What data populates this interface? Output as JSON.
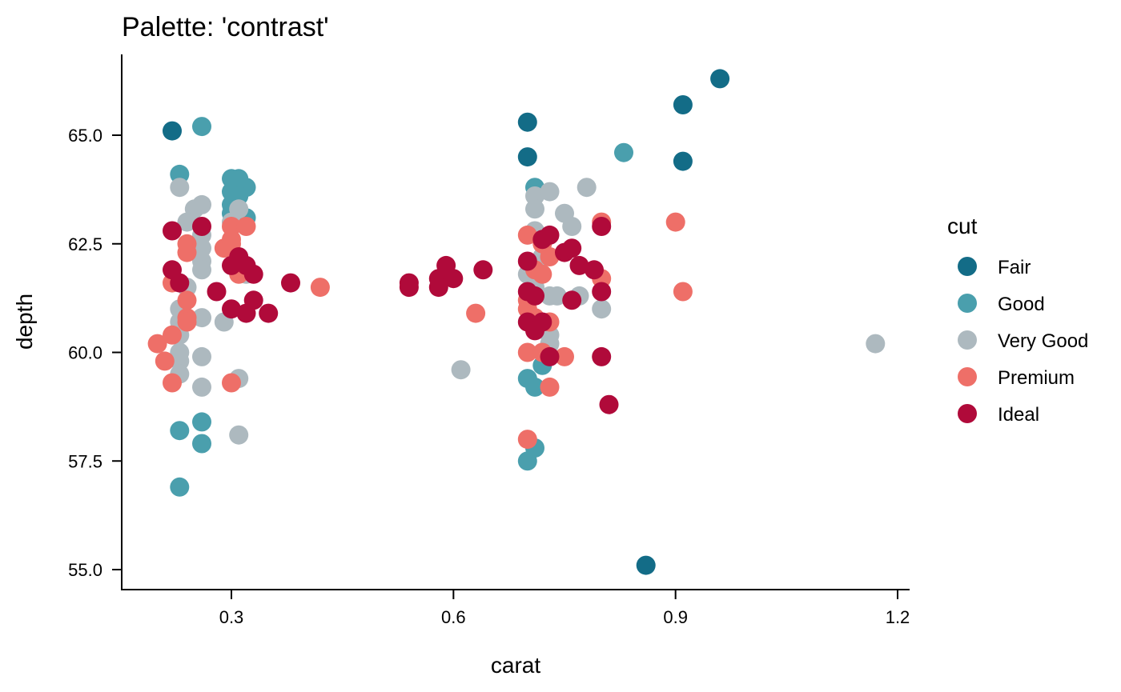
{
  "chart_data": {
    "type": "scatter",
    "title": "Palette: 'contrast'",
    "xlabel": "carat",
    "ylabel": "depth",
    "xlim": [
      0.15,
      1.22
    ],
    "ylim": [
      54.6,
      66.9
    ],
    "x_ticks": [
      0.3,
      0.6,
      0.9,
      1.2
    ],
    "x_tick_labels": [
      "0.3",
      "0.6",
      "0.9",
      "1.2"
    ],
    "y_ticks": [
      55.0,
      57.5,
      60.0,
      62.5,
      65.0
    ],
    "y_tick_labels": [
      "55.0",
      "57.5",
      "60.0",
      "62.5",
      "65.0"
    ],
    "grid": false,
    "legend": {
      "title": "cut",
      "placement": "right"
    },
    "series": [
      {
        "name": "Fair",
        "color": "#136c87",
        "points": [
          [
            0.22,
            65.1
          ],
          [
            0.7,
            65.3
          ],
          [
            0.7,
            64.5
          ],
          [
            0.91,
            65.7
          ],
          [
            0.91,
            64.4
          ],
          [
            0.96,
            66.3
          ],
          [
            0.86,
            55.1
          ]
        ]
      },
      {
        "name": "Good",
        "color": "#4a9fad",
        "points": [
          [
            0.26,
            65.2
          ],
          [
            0.23,
            64.1
          ],
          [
            0.3,
            64.0
          ],
          [
            0.31,
            64.0
          ],
          [
            0.3,
            63.7
          ],
          [
            0.32,
            63.8
          ],
          [
            0.3,
            63.4
          ],
          [
            0.31,
            63.6
          ],
          [
            0.3,
            63.2
          ],
          [
            0.32,
            63.1
          ],
          [
            0.23,
            58.2
          ],
          [
            0.26,
            58.4
          ],
          [
            0.26,
            57.9
          ],
          [
            0.23,
            56.9
          ],
          [
            0.71,
            63.8
          ],
          [
            0.83,
            64.6
          ],
          [
            0.7,
            59.4
          ],
          [
            0.72,
            59.7
          ],
          [
            0.71,
            59.2
          ],
          [
            0.7,
            57.5
          ],
          [
            0.71,
            57.8
          ]
        ]
      },
      {
        "name": "Very Good",
        "color": "#adb9bf",
        "points": [
          [
            0.23,
            63.8
          ],
          [
            0.26,
            63.4
          ],
          [
            0.25,
            63.3
          ],
          [
            0.24,
            63.0
          ],
          [
            0.26,
            62.7
          ],
          [
            0.26,
            62.4
          ],
          [
            0.26,
            62.1
          ],
          [
            0.26,
            61.9
          ],
          [
            0.24,
            61.5
          ],
          [
            0.23,
            61.0
          ],
          [
            0.23,
            60.7
          ],
          [
            0.23,
            60.4
          ],
          [
            0.23,
            60.0
          ],
          [
            0.23,
            59.8
          ],
          [
            0.23,
            59.5
          ],
          [
            0.26,
            60.8
          ],
          [
            0.26,
            59.9
          ],
          [
            0.26,
            59.2
          ],
          [
            0.29,
            60.7
          ],
          [
            0.31,
            59.4
          ],
          [
            0.31,
            58.1
          ],
          [
            0.31,
            63.3
          ],
          [
            0.3,
            63.0
          ],
          [
            0.32,
            61.8
          ],
          [
            0.71,
            63.6
          ],
          [
            0.71,
            63.3
          ],
          [
            0.73,
            63.7
          ],
          [
            0.78,
            63.8
          ],
          [
            0.75,
            63.2
          ],
          [
            0.76,
            62.9
          ],
          [
            0.71,
            62.8
          ],
          [
            0.72,
            62.2
          ],
          [
            0.7,
            61.8
          ],
          [
            0.71,
            61.5
          ],
          [
            0.73,
            61.3
          ],
          [
            0.74,
            61.3
          ],
          [
            0.77,
            61.3
          ],
          [
            0.73,
            60.4
          ],
          [
            0.73,
            60.2
          ],
          [
            0.8,
            61.0
          ],
          [
            0.61,
            59.6
          ],
          [
            1.17,
            60.2
          ]
        ]
      },
      {
        "name": "Premium",
        "color": "#ee6f68",
        "points": [
          [
            0.24,
            62.5
          ],
          [
            0.24,
            62.3
          ],
          [
            0.22,
            61.6
          ],
          [
            0.24,
            61.2
          ],
          [
            0.24,
            60.8
          ],
          [
            0.24,
            60.7
          ],
          [
            0.22,
            60.4
          ],
          [
            0.2,
            60.2
          ],
          [
            0.21,
            59.8
          ],
          [
            0.22,
            59.3
          ],
          [
            0.3,
            62.9
          ],
          [
            0.32,
            62.9
          ],
          [
            0.3,
            62.6
          ],
          [
            0.29,
            62.4
          ],
          [
            0.3,
            62.5
          ],
          [
            0.31,
            61.8
          ],
          [
            0.3,
            59.3
          ],
          [
            0.42,
            61.5
          ],
          [
            0.63,
            60.9
          ],
          [
            0.7,
            62.7
          ],
          [
            0.72,
            62.5
          ],
          [
            0.73,
            62.2
          ],
          [
            0.71,
            61.9
          ],
          [
            0.72,
            61.8
          ],
          [
            0.7,
            61.2
          ],
          [
            0.7,
            61.0
          ],
          [
            0.71,
            60.8
          ],
          [
            0.73,
            60.7
          ],
          [
            0.7,
            60.0
          ],
          [
            0.72,
            60.0
          ],
          [
            0.75,
            59.9
          ],
          [
            0.73,
            59.2
          ],
          [
            0.7,
            58.0
          ],
          [
            0.8,
            63.0
          ],
          [
            0.8,
            61.7
          ],
          [
            0.9,
            63.0
          ],
          [
            0.91,
            61.4
          ]
        ]
      },
      {
        "name": "Ideal",
        "color": "#b00a3a",
        "points": [
          [
            0.22,
            62.8
          ],
          [
            0.26,
            62.9
          ],
          [
            0.22,
            61.9
          ],
          [
            0.23,
            61.6
          ],
          [
            0.28,
            61.4
          ],
          [
            0.3,
            62.0
          ],
          [
            0.31,
            62.2
          ],
          [
            0.32,
            62.0
          ],
          [
            0.33,
            61.8
          ],
          [
            0.3,
            61.0
          ],
          [
            0.32,
            60.9
          ],
          [
            0.33,
            61.2
          ],
          [
            0.35,
            60.9
          ],
          [
            0.38,
            61.6
          ],
          [
            0.54,
            61.6
          ],
          [
            0.54,
            61.5
          ],
          [
            0.59,
            62.0
          ],
          [
            0.58,
            61.7
          ],
          [
            0.6,
            61.7
          ],
          [
            0.58,
            61.5
          ],
          [
            0.64,
            61.9
          ],
          [
            0.7,
            62.1
          ],
          [
            0.72,
            62.6
          ],
          [
            0.73,
            62.7
          ],
          [
            0.75,
            62.3
          ],
          [
            0.76,
            62.4
          ],
          [
            0.77,
            62.0
          ],
          [
            0.79,
            61.9
          ],
          [
            0.7,
            61.4
          ],
          [
            0.71,
            61.3
          ],
          [
            0.76,
            61.2
          ],
          [
            0.7,
            60.7
          ],
          [
            0.71,
            60.5
          ],
          [
            0.72,
            60.7
          ],
          [
            0.73,
            59.9
          ],
          [
            0.8,
            62.9
          ],
          [
            0.8,
            61.4
          ],
          [
            0.8,
            59.9
          ],
          [
            0.81,
            58.8
          ]
        ]
      }
    ]
  }
}
